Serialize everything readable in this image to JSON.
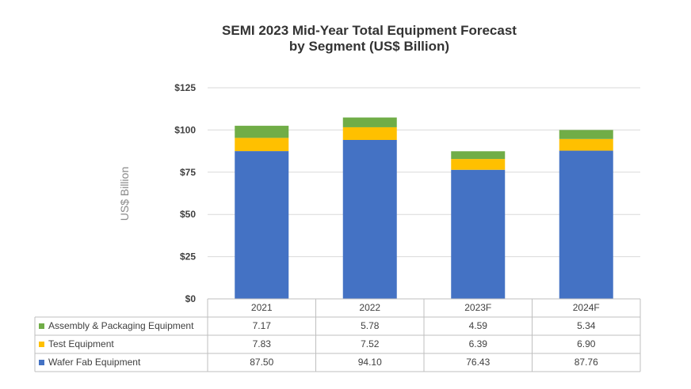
{
  "chart_data": {
    "type": "bar",
    "stacked": true,
    "title": "SEMI 2023 Mid-Year Total Equipment Forecast",
    "subtitle": "by Segment (US$ Billion)",
    "ylabel": "US$ Billion",
    "xlabel": "",
    "ylim": [
      0,
      125
    ],
    "yticks": [
      0,
      25,
      50,
      75,
      100,
      125
    ],
    "ytick_labels": [
      "$0",
      "$25",
      "$50",
      "$75",
      "$100",
      "$125"
    ],
    "grid": true,
    "categories": [
      "2021",
      "2022",
      "2023F",
      "2024F"
    ],
    "series": [
      {
        "name": "Wafer Fab Equipment",
        "color": "#4472C4",
        "values": [
          87.5,
          94.1,
          76.43,
          87.76
        ],
        "labels": [
          "87.50",
          "94.10",
          "76.43",
          "87.76"
        ]
      },
      {
        "name": "Test Equipment",
        "color": "#FFC000",
        "values": [
          7.83,
          7.52,
          6.39,
          6.9
        ],
        "labels": [
          "7.83",
          "7.52",
          "6.39",
          "6.90"
        ]
      },
      {
        "name": "Assembly & Packaging Equipment",
        "color": "#70AD47",
        "values": [
          7.17,
          5.78,
          4.59,
          5.34
        ],
        "labels": [
          "7.17",
          "5.78",
          "4.59",
          "5.34"
        ]
      }
    ],
    "table_row_order": [
      "Assembly & Packaging Equipment",
      "Test Equipment",
      "Wafer Fab Equipment"
    ]
  }
}
